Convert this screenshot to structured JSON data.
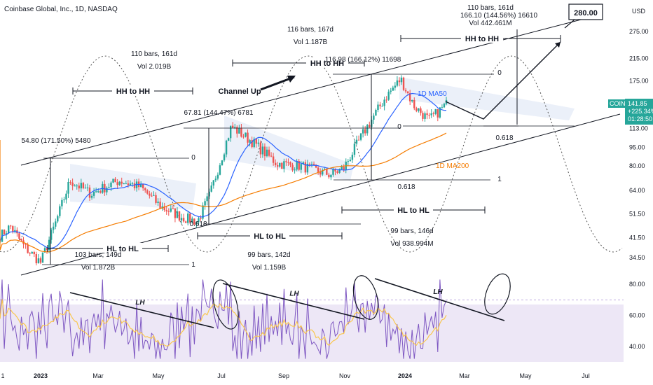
{
  "chart_data": {
    "type": "candlestick",
    "title": "Coinbase Global, Inc., 1D, NASDAQ",
    "currency": "USD",
    "ticker": "COIN",
    "price_label": "141.85",
    "change_label": "+225.34%",
    "countdown_label": "01:28:50",
    "y_scale": "log",
    "y_ticks": [
      "275.00",
      "215.00",
      "175.00",
      "141.85",
      "113.00",
      "95.00",
      "80.00",
      "64.00",
      "51.50",
      "41.50",
      "34.50"
    ],
    "x_ticks": [
      "1",
      "2023",
      "Mar",
      "May",
      "Jul",
      "Sep",
      "Nov",
      "2024",
      "Mar",
      "May",
      "Jul"
    ],
    "rsi_ticks": [
      "80.00",
      "60.00",
      "40.00"
    ],
    "rsi_band": [
      30,
      70
    ],
    "ma50_label": "1D MA50",
    "ma200_label": "1D MA200",
    "colors": {
      "up": "#26a69a",
      "down": "#ef5350",
      "ma50": "#2962ff",
      "ma200": "#f57c00",
      "rsi": "#7e57c2",
      "rsi_ma": "#f9c74f",
      "band": "#ede7f6",
      "channel": "#e3eaf7"
    },
    "annotations": {
      "target_box": "280.00",
      "channel_up": "Channel Up",
      "hh_to_hh": "HH to HH",
      "hl_to_hl": "HL to HL",
      "lh": "LH",
      "stats": [
        {
          "line1": "54.80 (171.50%) 5480",
          "line2": "",
          "line3": ""
        },
        {
          "line1": "67.81 (144.47%) 6781",
          "line2": "",
          "line3": ""
        },
        {
          "line1": "116.98 (166.12%) 11698",
          "line2": "",
          "line3": ""
        },
        {
          "line1": "110 bars, 161d",
          "line2": "166.10 (144.56%) 16610",
          "line3": "Vol 442.461M"
        }
      ],
      "bars": [
        {
          "a": "110 bars, 161d",
          "b": "Vol 2.019B"
        },
        {
          "a": "116 bars, 167d",
          "b": "Vol 1.187B"
        },
        {
          "a": "103 bars, 149d",
          "b": "Vol 1.872B"
        },
        {
          "a": "99 bars, 142d",
          "b": "Vol 1.159B"
        },
        {
          "a": "99 bars, 146d",
          "b": "Vol 938.994M"
        }
      ],
      "fib": {
        "zero": "0",
        "one": "1",
        "f0618": "0.618"
      }
    }
  }
}
